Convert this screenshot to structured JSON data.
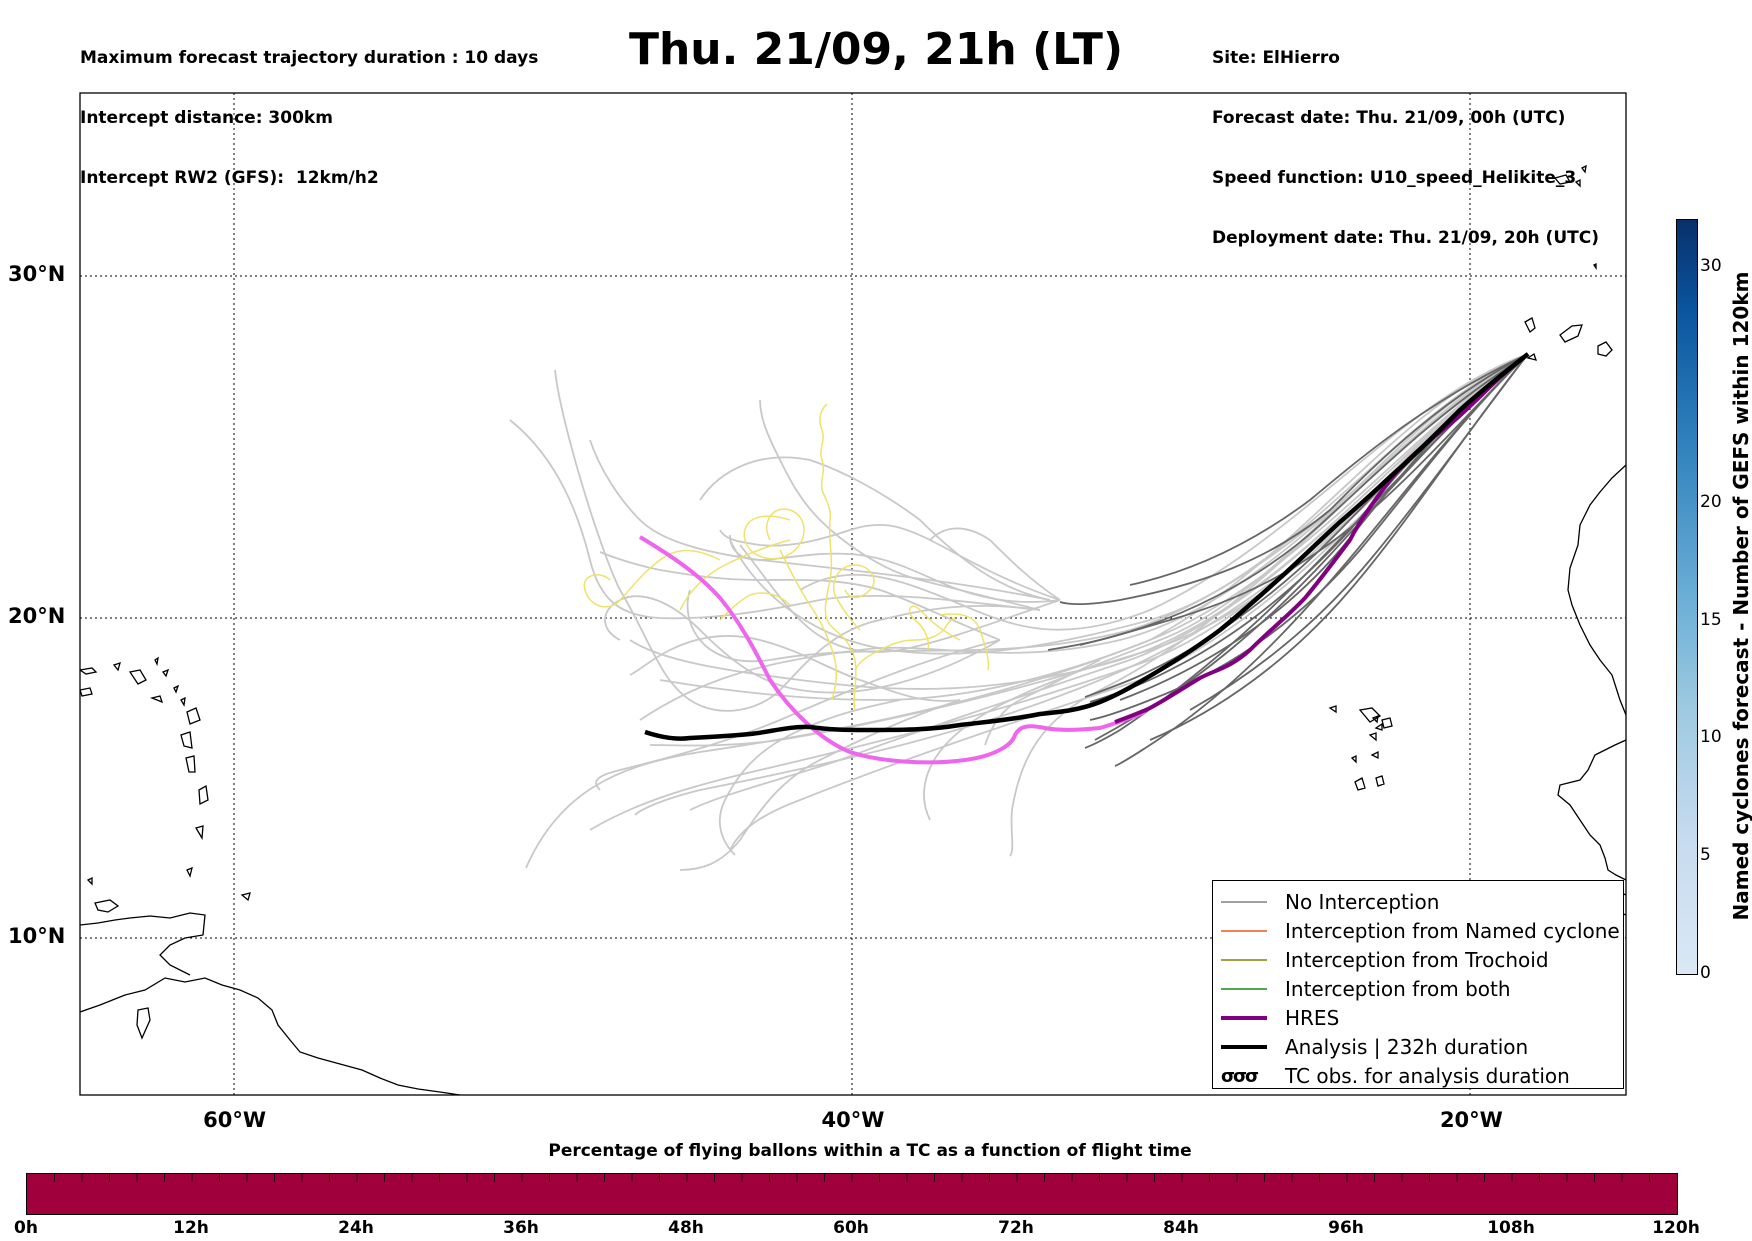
{
  "header": {
    "left_lines": [
      "Maximum forecast trajectory duration : 10 days",
      "Intercept distance: 300km",
      "Intercept RW2 (GFS):  12km/h2"
    ],
    "title": "Thu. 21/09, 21h (LT)",
    "right_lines": [
      "Site: ElHierro",
      "Forecast date: Thu. 21/09, 00h (UTC)",
      "Speed function: U10_speed_Helikite_3",
      "Deployment date: Thu. 21/09, 20h (UTC)"
    ]
  },
  "map": {
    "lon_range": [
      -65,
      -15
    ],
    "lat_range": [
      5,
      34
    ],
    "lat_labels": [
      {
        "lat": 30,
        "text": "30°N"
      },
      {
        "lat": 20,
        "text": "20°N"
      },
      {
        "lat": 10,
        "text": "10°N"
      }
    ],
    "lon_labels": [
      {
        "lon": -60,
        "text": "60°W"
      },
      {
        "lon": -40,
        "text": "40°W"
      },
      {
        "lon": -20,
        "text": "20°W"
      }
    ]
  },
  "legend": {
    "items": [
      {
        "label": "No Interception",
        "color": "#808080",
        "width": 1.5
      },
      {
        "label": "Interception from Named cyclone",
        "color": "#e8581b",
        "width": 1.5
      },
      {
        "label": "Interception from Trochoid",
        "color": "#808000",
        "width": 1.5
      },
      {
        "label": "Interception from both",
        "color": "#1a8a1a",
        "width": 1.5
      },
      {
        "label": "HRES",
        "color": "#800080",
        "width": 4
      },
      {
        "label": "Analysis | 232h duration",
        "color": "#000000",
        "width": 4
      }
    ],
    "tc_obs": {
      "label": "TC obs. for analysis duration",
      "symbol": "σσσ"
    }
  },
  "colorbar_vertical": {
    "label": "Named cyclones forecast - Number of GEFS within 120km",
    "ticks": [
      0,
      5,
      10,
      15,
      20,
      30
    ],
    "max": 32,
    "colors": [
      "#dbe8f5",
      "#08306b"
    ]
  },
  "colorbar_horizontal": {
    "title": "Percentage of flying ballons within a TC as a function of flight time",
    "color": "#a0003c",
    "ticks": [
      "0h",
      "12h",
      "24h",
      "36h",
      "48h",
      "60h",
      "72h",
      "84h",
      "96h",
      "108h",
      "120h"
    ]
  }
}
